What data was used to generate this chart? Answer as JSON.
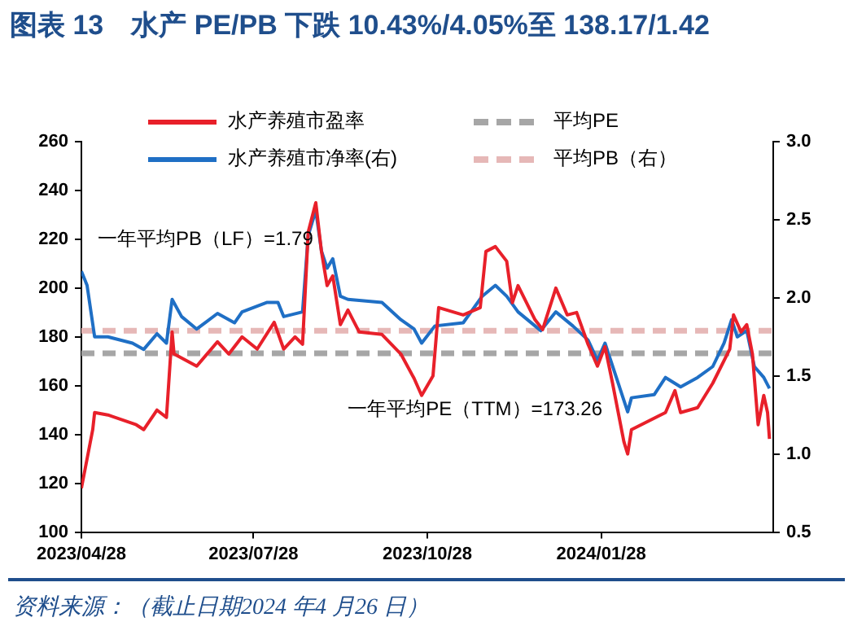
{
  "chart_data": {
    "type": "line",
    "title": "图表 13　水产 PE/PB 下跌 10.43%/4.05%至 138.17/1.42",
    "annotations": [
      "一年平均PB（LF）=1.79",
      "一年平均PE（TTM）=173.26",
      "资料来源：（截止日期2024 年4 月26 日）"
    ],
    "xlim": [
      "2023-04-28",
      "2024-04-28"
    ],
    "xticks": [
      {
        "value": "2023-04-28",
        "label": "2023/04/28"
      },
      {
        "value": "2023-07-28",
        "label": "2023/07/28"
      },
      {
        "value": "2023-10-28",
        "label": "2023/10/28"
      },
      {
        "value": "2024-01-28",
        "label": "2024/01/28"
      }
    ],
    "ylim": [
      100,
      260
    ],
    "yticks": [
      100,
      120,
      140,
      160,
      180,
      200,
      220,
      240,
      260
    ],
    "y2lim": [
      0.5,
      3.0
    ],
    "y2ticks": [
      0.5,
      {
        "value": 1,
        "label": "1.0"
      },
      1.5,
      {
        "value": 2,
        "label": "2.0"
      },
      2.5,
      {
        "value": 3,
        "label": "3.0"
      }
    ],
    "legend": "top",
    "series": [
      {
        "name": "水产养殖市盈率",
        "color": "#e8202a",
        "x": [
          "2023-04-28",
          "2023-05-04",
          "2023-05-05",
          "2023-05-12",
          "2023-05-27",
          "2023-05-31",
          "2023-06-07",
          "2023-06-12",
          "2023-06-15",
          "2023-06-16",
          "2023-06-28",
          "2023-07-09",
          "2023-07-15",
          "2023-07-22",
          "2023-07-30",
          "2023-08-08",
          "2023-08-13",
          "2023-08-19",
          "2023-08-23",
          "2023-08-26",
          "2023-08-30",
          "2023-09-02",
          "2023-09-05",
          "2023-09-08",
          "2023-09-12",
          "2023-09-16",
          "2023-09-22",
          "2023-10-04",
          "2023-10-14",
          "2023-10-21",
          "2023-10-25",
          "2023-10-31",
          "2023-11-03",
          "2023-11-16",
          "2023-11-25",
          "2023-11-28",
          "2023-12-03",
          "2023-12-09",
          "2023-12-12",
          "2023-12-15",
          "2023-12-24",
          "2023-12-28",
          "2024-01-04",
          "2024-01-10",
          "2024-01-15",
          "2024-01-21",
          "2024-01-26",
          "2024-01-30",
          "2024-02-03",
          "2024-02-09",
          "2024-02-11",
          "2024-02-13",
          "2024-03-02",
          "2024-03-07",
          "2024-03-10",
          "2024-03-19",
          "2024-03-27",
          "2024-04-05",
          "2024-04-07",
          "2024-04-11",
          "2024-04-14",
          "2024-04-17",
          "2024-04-20",
          "2024-04-23",
          "2024-04-25",
          "2024-04-26"
        ],
        "values": [
          118,
          142,
          149,
          148,
          144,
          142,
          150,
          147,
          182,
          173,
          168,
          178,
          173,
          180,
          175,
          186,
          175,
          180,
          177,
          223,
          235,
          215,
          201,
          205,
          185,
          191,
          182,
          181,
          173,
          163,
          156,
          164,
          192,
          189,
          192,
          215,
          217,
          211,
          194,
          201,
          187,
          183,
          200,
          189,
          190,
          177,
          168,
          176,
          161,
          137,
          132,
          142,
          149,
          158,
          149,
          151,
          161,
          175,
          189,
          182,
          185,
          173,
          144,
          156,
          149,
          138.17
        ]
      },
      {
        "name": "水产养殖市净率(右)",
        "color": "#1f6fc5",
        "axis": "y2",
        "x": [
          "2023-04-28",
          "2023-05-01",
          "2023-05-05",
          "2023-05-12",
          "2023-05-25",
          "2023-05-31",
          "2023-06-07",
          "2023-06-12",
          "2023-06-15",
          "2023-06-20",
          "2023-06-28",
          "2023-07-09",
          "2023-07-18",
          "2023-07-22",
          "2023-08-04",
          "2023-08-10",
          "2023-08-13",
          "2023-08-23",
          "2023-08-26",
          "2023-08-30",
          "2023-09-02",
          "2023-09-05",
          "2023-09-08",
          "2023-09-12",
          "2023-09-16",
          "2023-10-04",
          "2023-10-14",
          "2023-10-21",
          "2023-10-25",
          "2023-11-01",
          "2023-11-16",
          "2023-11-26",
          "2023-12-03",
          "2023-12-09",
          "2023-12-15",
          "2023-12-27",
          "2024-01-04",
          "2024-01-13",
          "2024-01-21",
          "2024-01-26",
          "2024-01-30",
          "2024-02-05",
          "2024-02-11",
          "2024-02-13",
          "2024-02-25",
          "2024-03-02",
          "2024-03-10",
          "2024-03-19",
          "2024-03-27",
          "2024-04-02",
          "2024-04-06",
          "2024-04-09",
          "2024-04-14",
          "2024-04-18",
          "2024-04-23",
          "2024-04-26"
        ],
        "values": [
          2.17,
          2.08,
          1.75,
          1.75,
          1.71,
          1.67,
          1.77,
          1.71,
          1.99,
          1.88,
          1.8,
          1.9,
          1.84,
          1.91,
          1.97,
          1.97,
          1.88,
          1.91,
          2.4,
          2.56,
          2.3,
          2.19,
          2.25,
          2.01,
          1.99,
          1.97,
          1.86,
          1.8,
          1.71,
          1.82,
          1.84,
          2.01,
          2.08,
          2.01,
          1.91,
          1.79,
          1.91,
          1.82,
          1.73,
          1.6,
          1.71,
          1.49,
          1.27,
          1.36,
          1.38,
          1.49,
          1.43,
          1.49,
          1.56,
          1.71,
          1.86,
          1.75,
          1.79,
          1.56,
          1.49,
          1.42
        ]
      }
    ],
    "ref_lines": [
      {
        "axis": "y",
        "value": 173.26,
        "label": "平均PE",
        "color": "#a6a6a6",
        "line_style": "dashed"
      },
      {
        "axis": "y2",
        "value": 1.79,
        "label": "平均PB（右）",
        "color": "#e6b8b7",
        "line_style": "dashed"
      }
    ]
  }
}
